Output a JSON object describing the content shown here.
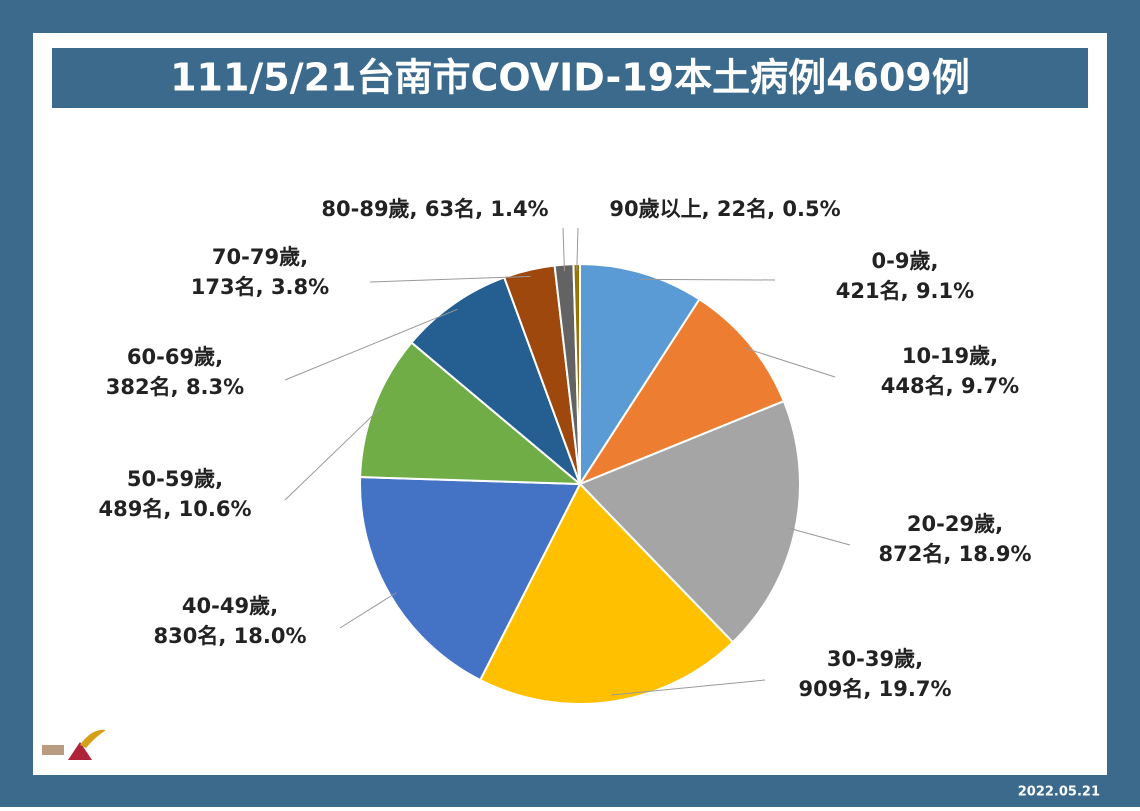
{
  "chart_data": {
    "type": "pie",
    "title": "111/5/21台南市COVID-19本土病例4609例",
    "categories": [
      "0-9歲,",
      "10-19歲,",
      "20-29歲,",
      "30-39歲,",
      "40-49歲,",
      "50-59歲,",
      "60-69歲,",
      "70-79歲,",
      "80-89歲,",
      "90歲以上,"
    ],
    "values": [
      421,
      448,
      872,
      909,
      830,
      489,
      382,
      173,
      63,
      22
    ],
    "value_labels": [
      "421名,",
      "448名,",
      "872名,",
      "909名,",
      "830名,",
      "489名,",
      "382名,",
      "173名,",
      "63名,",
      "22名,"
    ],
    "percent": [
      9.1,
      9.7,
      18.9,
      19.7,
      18.0,
      10.6,
      8.3,
      3.8,
      1.4,
      0.5
    ],
    "percent_labels": [
      "9.1%",
      "9.7%",
      "18.9%",
      "19.7%",
      "18.0%",
      "10.6%",
      "8.3%",
      "3.8%",
      "1.4%",
      "0.5%"
    ],
    "colors": [
      "#5b9bd5",
      "#ed7d31",
      "#a5a5a5",
      "#ffc000",
      "#4472c4",
      "#70ad47",
      "#255e91",
      "#9e480e",
      "#636363",
      "#997300"
    ],
    "date": "2022.05.21"
  }
}
